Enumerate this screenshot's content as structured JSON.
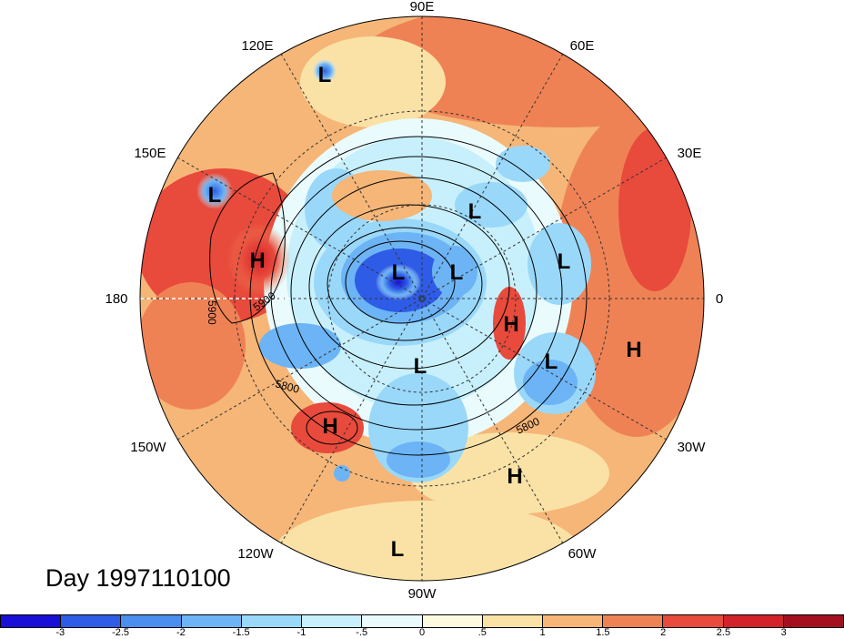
{
  "map": {
    "projection": "north-polar-stereographic",
    "longitude_labels": [
      "90E",
      "60E",
      "30E",
      "0",
      "30W",
      "60W",
      "90W",
      "120W",
      "150W",
      "180",
      "150E",
      "120E"
    ],
    "pressure_centers": [
      {
        "type": "L",
        "label": "L"
      },
      {
        "type": "L",
        "label": "L"
      },
      {
        "type": "L",
        "label": "L"
      },
      {
        "type": "L",
        "label": "L"
      },
      {
        "type": "L",
        "label": "L"
      },
      {
        "type": "L",
        "label": "L"
      },
      {
        "type": "L",
        "label": "L"
      },
      {
        "type": "L",
        "label": "L"
      },
      {
        "type": "L",
        "label": "L"
      },
      {
        "type": "H",
        "label": "H"
      },
      {
        "type": "H",
        "label": "H"
      },
      {
        "type": "H",
        "label": "H"
      },
      {
        "type": "H",
        "label": "H"
      },
      {
        "type": "H",
        "label": "H"
      }
    ],
    "contour_labels": [
      "5900",
      "5900",
      "5800",
      "5800"
    ]
  },
  "title": "Day 1997110100",
  "colorbar": {
    "tick_labels": [
      "-3",
      "-2.5",
      "-2",
      "-1.5",
      "-1",
      "-.5",
      "0",
      ".5",
      "1",
      "1.5",
      "2",
      "2.5",
      "3"
    ],
    "colors": [
      "#1a0fd6",
      "#2e5ce6",
      "#4a8eef",
      "#6cb4f5",
      "#9ad8fa",
      "#c8f0fc",
      "#eafbfd",
      "#fefae0",
      "#fae2a6",
      "#f5b678",
      "#ef8255",
      "#e84a3c",
      "#d2222a",
      "#a30f1f"
    ]
  }
}
